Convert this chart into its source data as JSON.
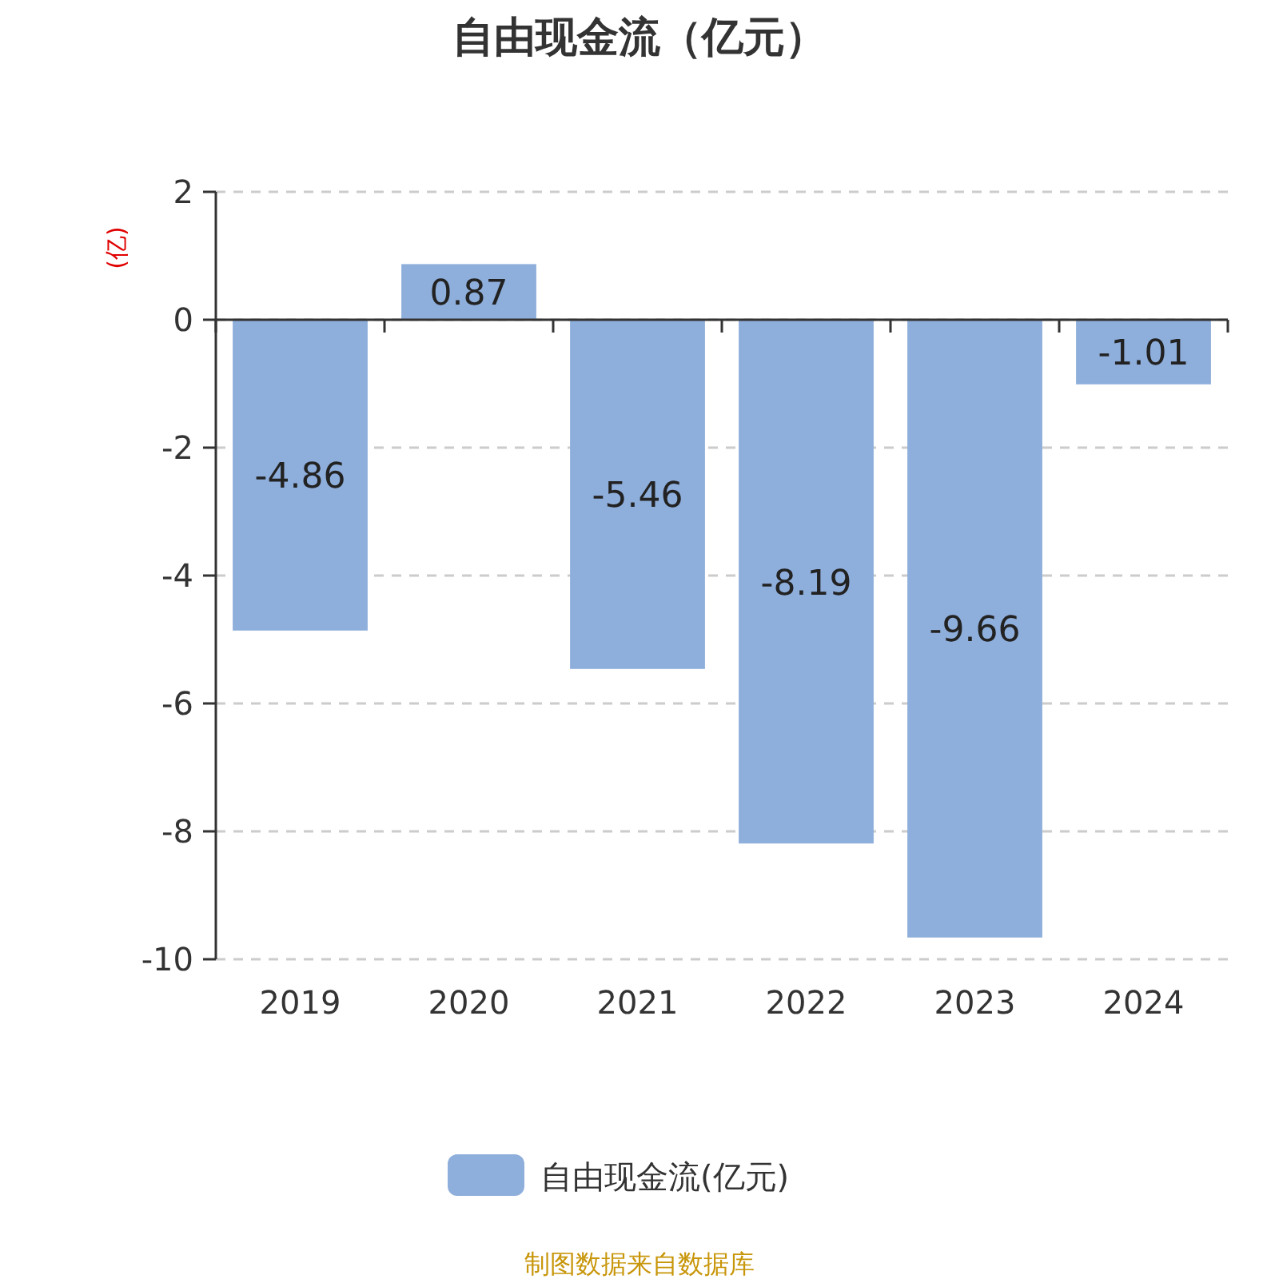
{
  "chart_data": {
    "type": "bar",
    "title": "自由现金流（亿元）",
    "ylabel": "(亿)",
    "categories": [
      "2019",
      "2020",
      "2021",
      "2022",
      "2023",
      "2024"
    ],
    "series": [
      {
        "name": "自由现金流(亿元)",
        "color": "#8eaedb",
        "values": [
          -4.86,
          0.87,
          -5.46,
          -8.19,
          -9.66,
          -1.01
        ]
      }
    ],
    "ylim": [
      -10,
      2
    ],
    "yticks": [
      -10,
      -8,
      -6,
      -4,
      -2,
      0,
      2
    ],
    "grid": "y",
    "legend": "bottom",
    "data_labels": true,
    "annotations": [
      "制图数据来自数据库"
    ]
  }
}
